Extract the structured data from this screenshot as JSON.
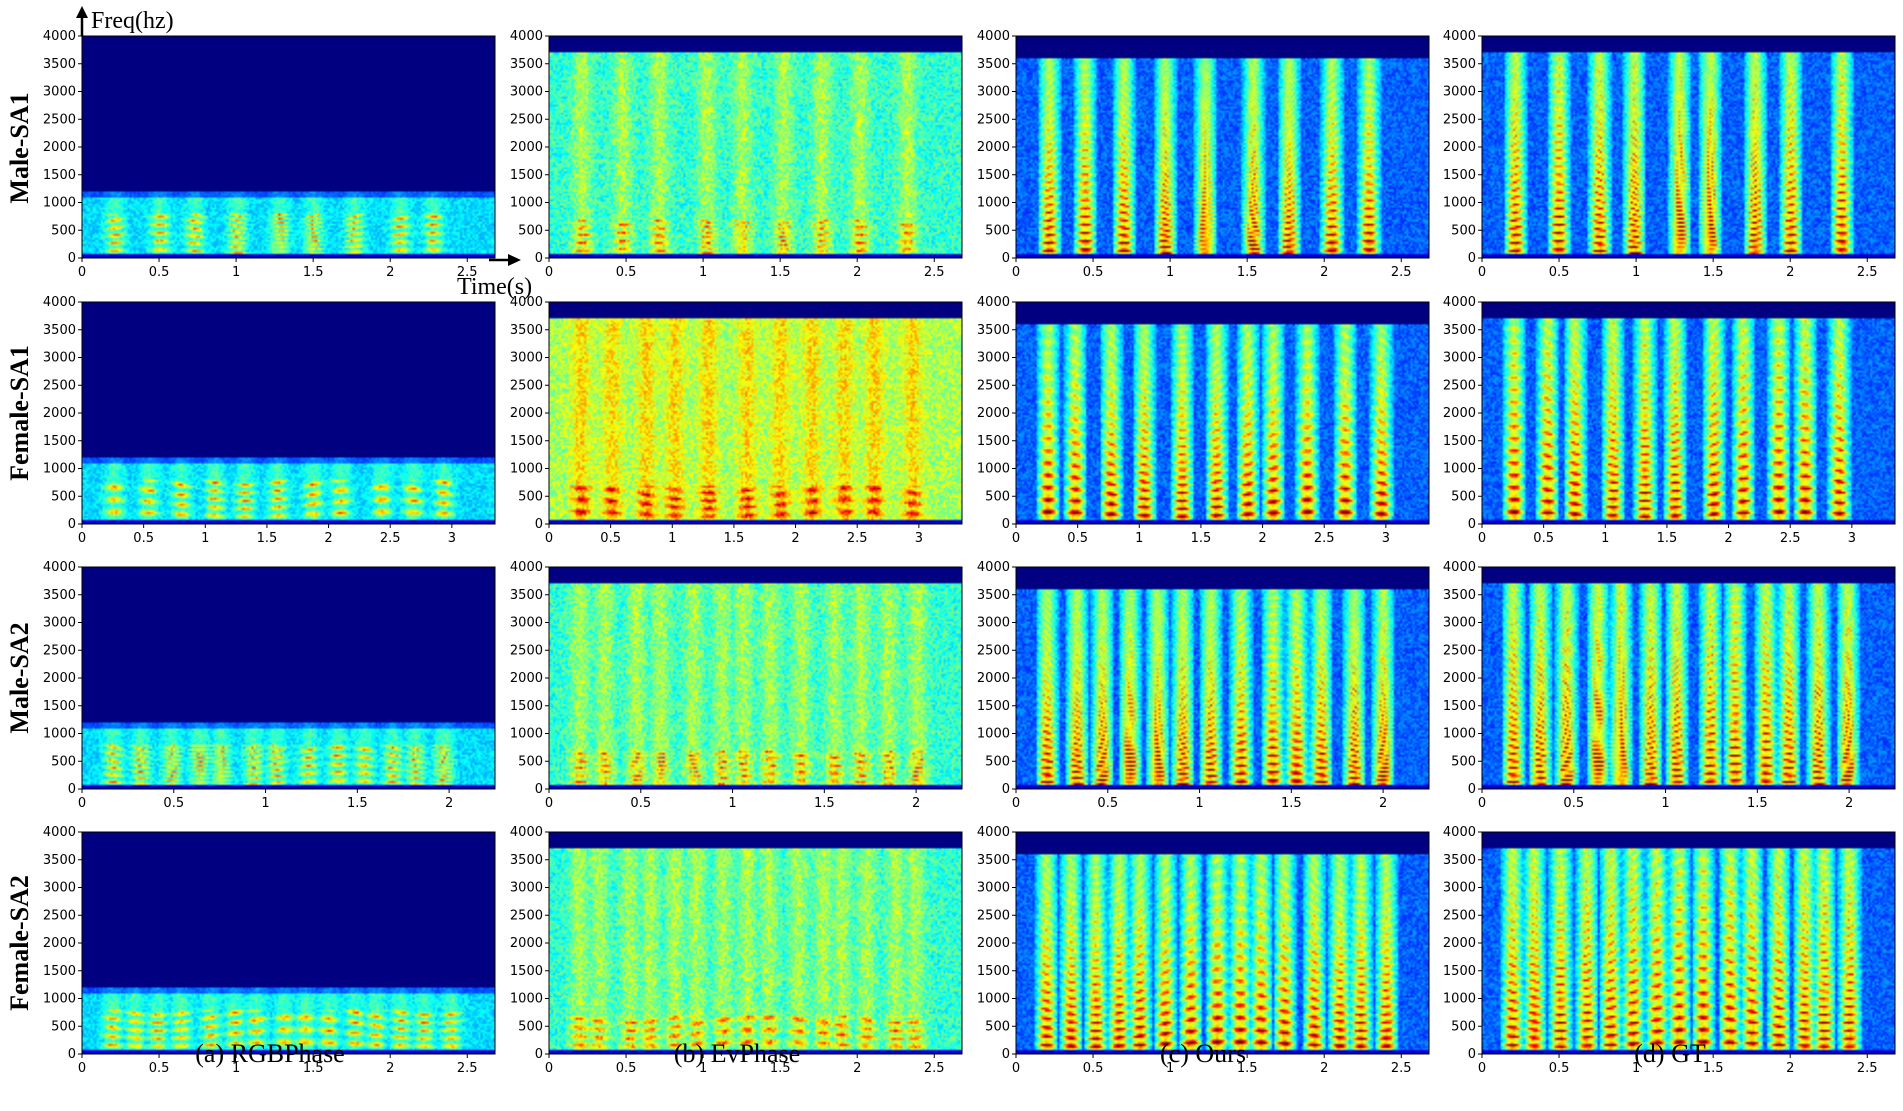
{
  "figure": {
    "freq_axis_label": "Freq(hz)",
    "time_axis_label": "Time(s)",
    "rows": [
      "Male-SA1",
      "Female-SA1",
      "Male-SA2",
      "Female-SA2"
    ],
    "columns": [
      "(a) RGBPhase",
      "(b) EvPhase",
      "(c) Ours",
      "(d) GT"
    ]
  },
  "colors": {
    "background": "#00007f",
    "colormap": "jet"
  },
  "chart_data": {
    "type": "heatmap",
    "colormap": "jet",
    "ylim": [
      0,
      4000
    ],
    "yticks": [
      0,
      500,
      1000,
      1500,
      2000,
      2500,
      3000,
      3500,
      4000
    ],
    "xlabel": "Time(s)",
    "ylabel": "Freq(hz)",
    "rows": [
      {
        "name": "Male-SA1",
        "duration": 2.68,
        "xticks": [
          0,
          0.5,
          1,
          1.5,
          2,
          2.5
        ]
      },
      {
        "name": "Female-SA1",
        "duration": 3.35,
        "xticks": [
          0,
          0.5,
          1,
          1.5,
          2,
          2.5,
          3
        ]
      },
      {
        "name": "Male-SA2",
        "duration": 2.25,
        "xticks": [
          0,
          0.5,
          1,
          1.5,
          2
        ]
      },
      {
        "name": "Female-SA2",
        "duration": 2.68,
        "xticks": [
          0,
          0.5,
          1,
          1.5,
          2,
          2.5
        ]
      }
    ],
    "columns": [
      {
        "name": "(a) RGBPhase",
        "energy_cutoff_hz": 1200,
        "style": "lowband"
      },
      {
        "name": "(b) EvPhase",
        "energy_cutoff_hz": 3700,
        "style": "noisy"
      },
      {
        "name": "(c) Ours",
        "energy_cutoff_hz": 3600,
        "style": "harmonic"
      },
      {
        "name": "(d) GT",
        "energy_cutoff_hz": 3700,
        "style": "harmonic-sharp"
      }
    ]
  }
}
